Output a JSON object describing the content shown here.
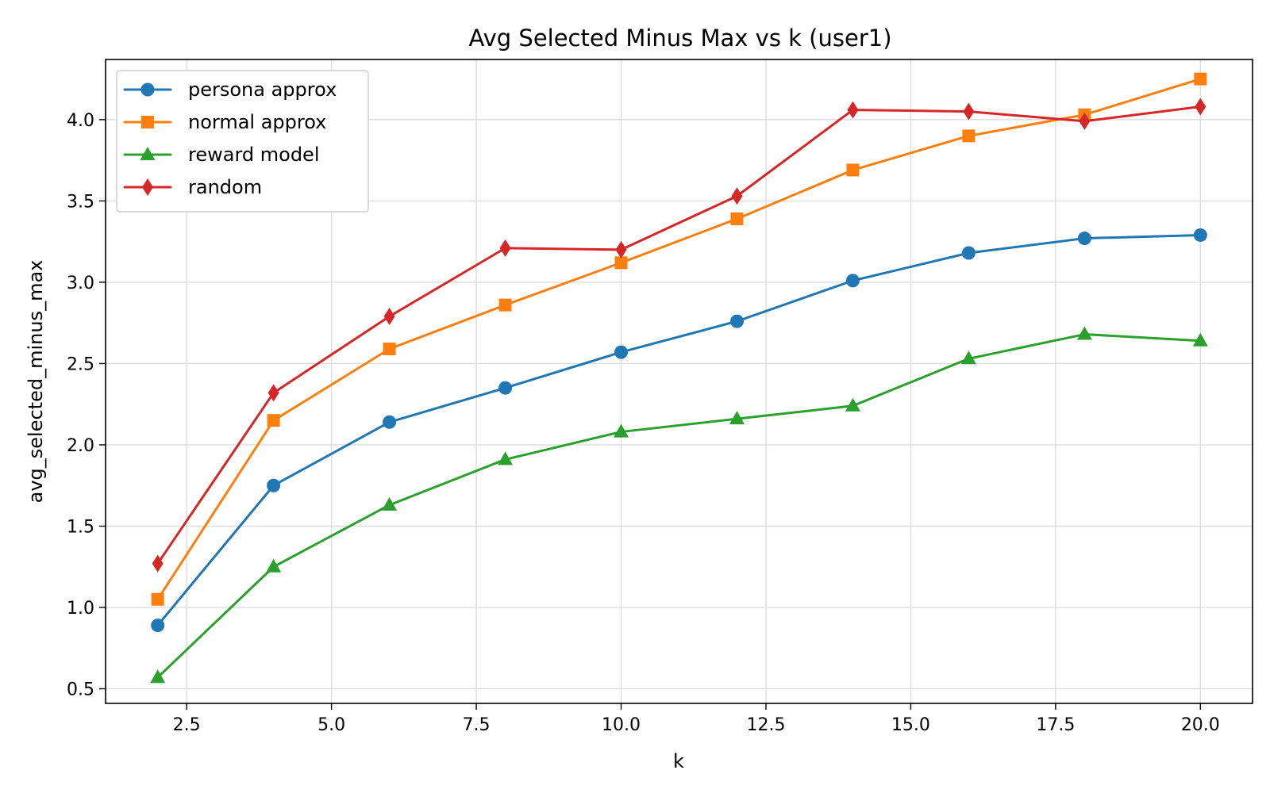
{
  "chart_data": {
    "type": "line",
    "title": "Avg Selected Minus Max vs k (user1)",
    "xlabel": "k",
    "ylabel": "avg_selected_minus_max",
    "xlim": [
      1.1,
      20.9
    ],
    "ylim": [
      0.41,
      4.37
    ],
    "xticks": [
      2.5,
      5.0,
      7.5,
      10.0,
      12.5,
      15.0,
      17.5,
      20.0
    ],
    "xtick_labels": [
      "2.5",
      "5.0",
      "7.5",
      "10.0",
      "12.5",
      "15.0",
      "17.5",
      "20.0"
    ],
    "yticks": [
      0.5,
      1.0,
      1.5,
      2.0,
      2.5,
      3.0,
      3.5,
      4.0
    ],
    "ytick_labels": [
      "0.5",
      "1.0",
      "1.5",
      "2.0",
      "2.5",
      "3.0",
      "3.5",
      "4.0"
    ],
    "grid": true,
    "legend_position": "top-left",
    "x": [
      2,
      4,
      6,
      8,
      10,
      12,
      14,
      16,
      18,
      20
    ],
    "series": [
      {
        "name": "persona approx",
        "color": "#1f77b4",
        "marker": "circle",
        "values": [
          0.89,
          1.75,
          2.14,
          2.35,
          2.57,
          2.76,
          3.01,
          3.18,
          3.27,
          3.29
        ]
      },
      {
        "name": "normal approx",
        "color": "#ff7f0e",
        "marker": "square",
        "values": [
          1.05,
          2.15,
          2.59,
          2.86,
          3.12,
          3.39,
          3.69,
          3.9,
          4.03,
          4.25
        ]
      },
      {
        "name": "reward model",
        "color": "#2ca02c",
        "marker": "triangle",
        "values": [
          0.57,
          1.25,
          1.63,
          1.91,
          2.08,
          2.16,
          2.24,
          2.53,
          2.68,
          2.64
        ]
      },
      {
        "name": "random",
        "color": "#d62728",
        "marker": "diamond",
        "values": [
          1.27,
          2.32,
          2.79,
          3.21,
          3.2,
          3.53,
          4.06,
          4.05,
          3.99,
          4.08
        ]
      }
    ]
  }
}
